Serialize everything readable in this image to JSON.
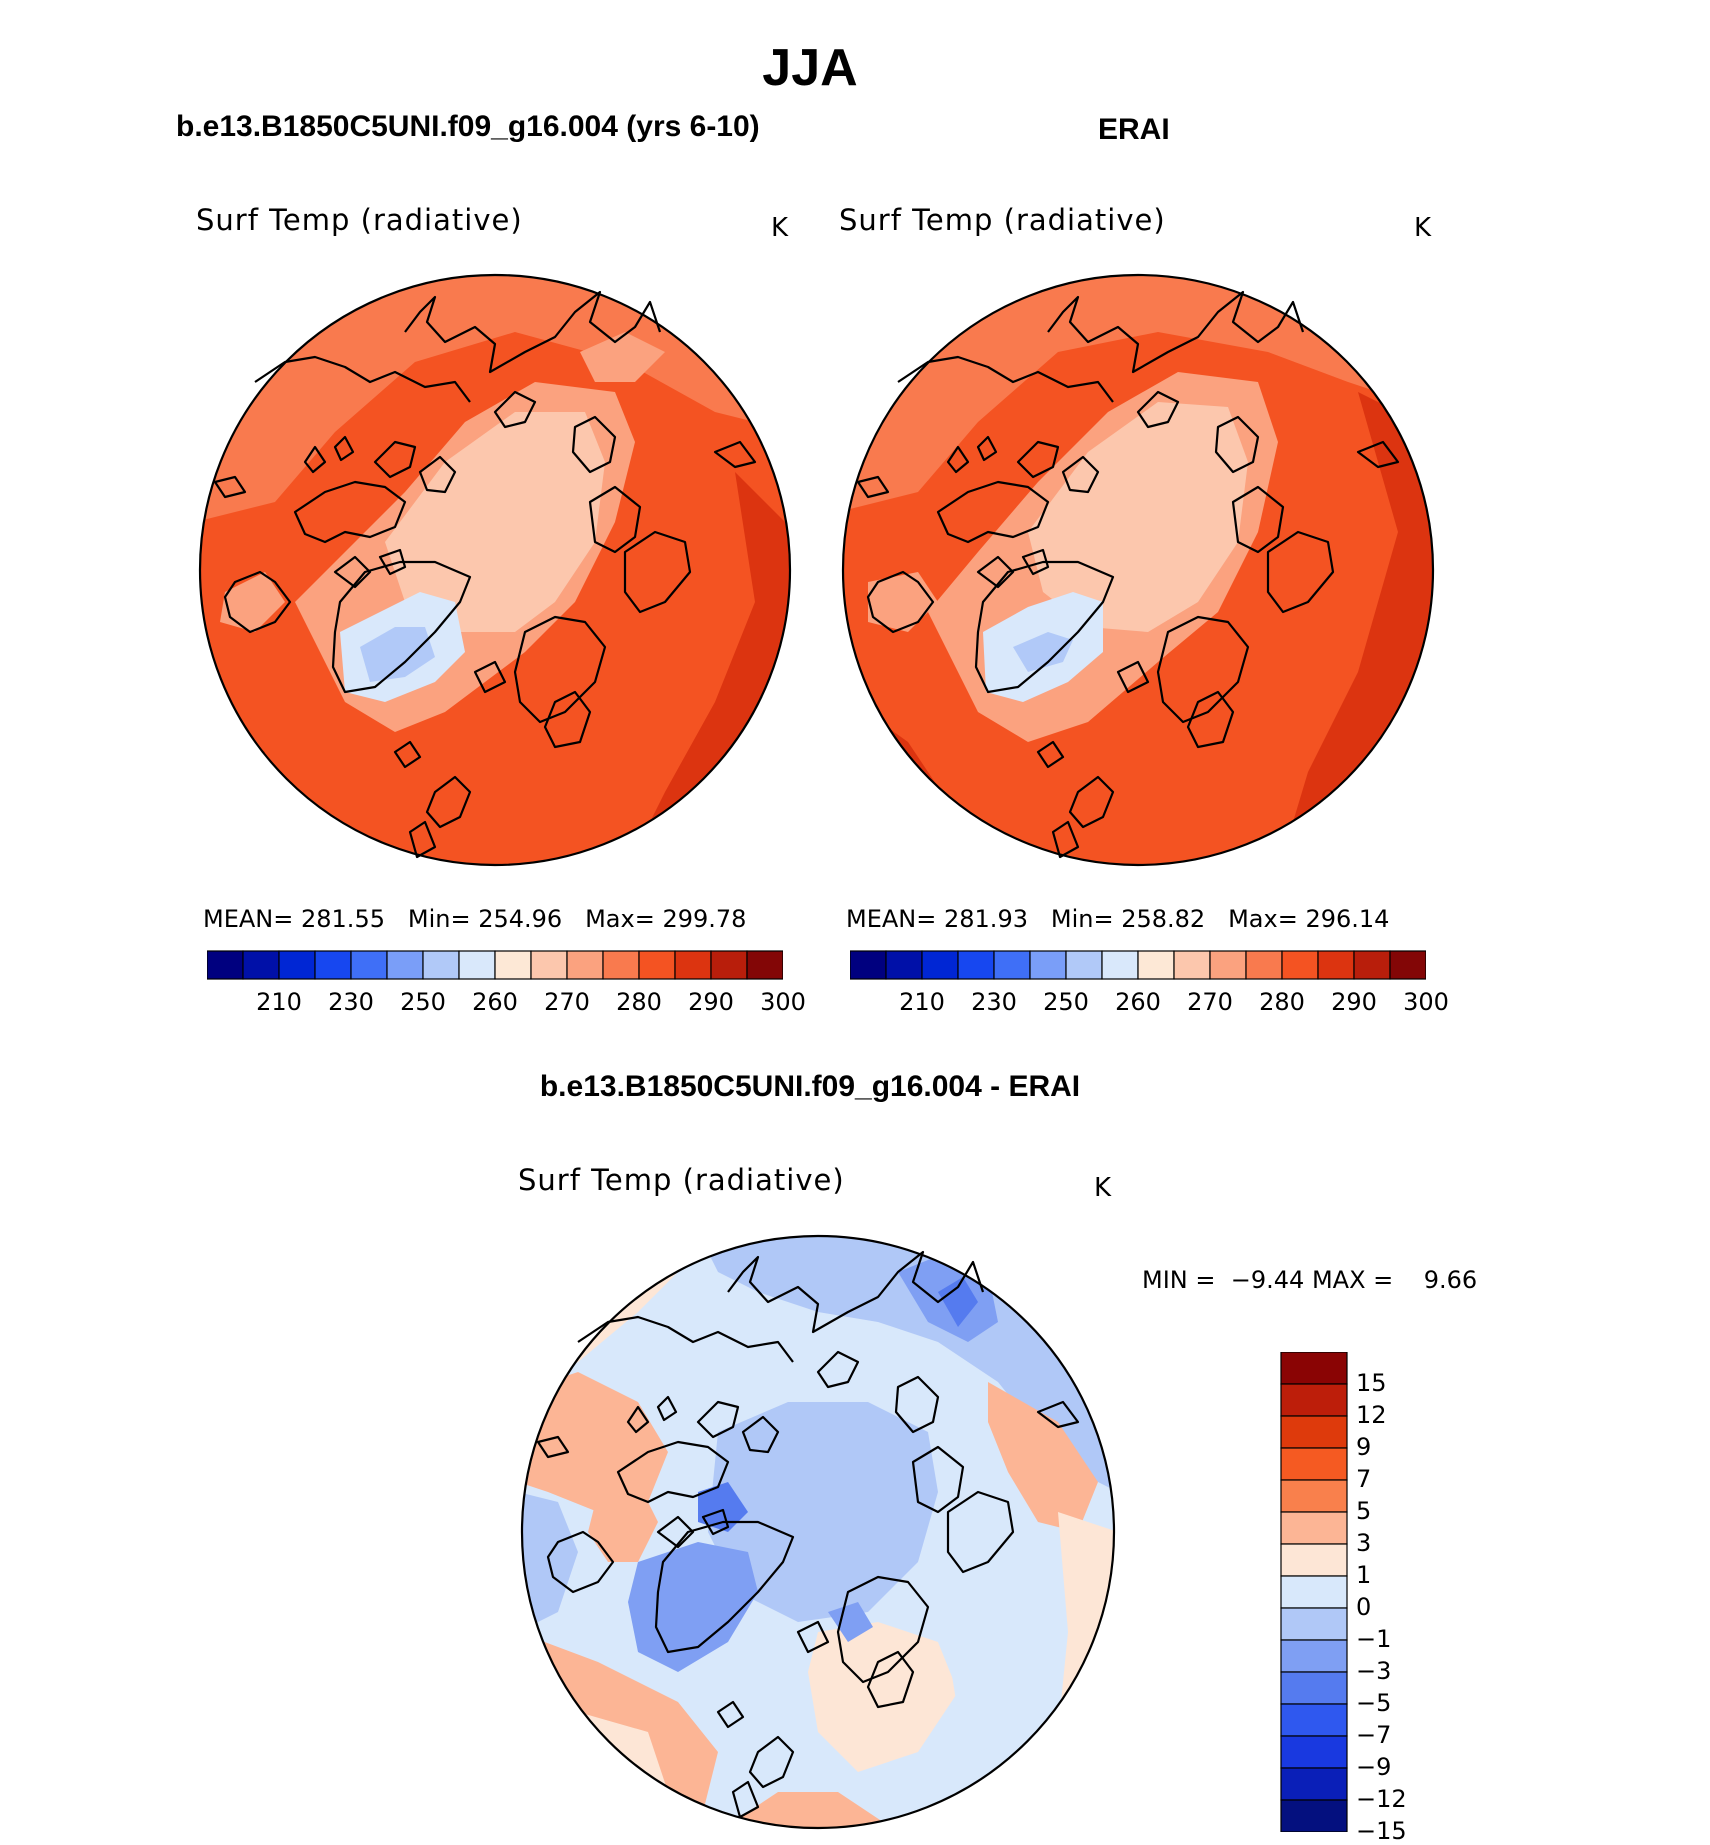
{
  "main_title": "JJA",
  "panels": [
    {
      "subtitle": "b.e13.B1850C5UNI.f09_g16.004 (yrs 6-10)",
      "variable": "Surf Temp (radiative)",
      "units": "K",
      "stats": {
        "mean_label": "MEAN=",
        "mean": "281.55",
        "min_label": "Min=",
        "min": "254.96",
        "max_label": "Max=",
        "max": "299.78"
      }
    },
    {
      "subtitle": "ERAI",
      "variable": "Surf Temp (radiative)",
      "units": "K",
      "stats": {
        "mean_label": "MEAN=",
        "mean": "281.93",
        "min_label": "Min=",
        "min": "258.82",
        "max_label": "Max=",
        "max": "296.14"
      }
    }
  ],
  "abs_colorbar": {
    "colors": [
      "#00007f",
      "#0010a8",
      "#0026d4",
      "#1747f0",
      "#3f6ff7",
      "#7a9ef8",
      "#b1c9f8",
      "#d9e8fb",
      "#fde8d6",
      "#fcc7ad",
      "#fba27f",
      "#f97a4e",
      "#f45322",
      "#dc3410",
      "#b81e0b",
      "#830606"
    ],
    "ticks": [
      "210",
      "230",
      "250",
      "260",
      "270",
      "280",
      "290",
      "300"
    ]
  },
  "difference": {
    "title": "b.e13.B1850C5UNI.f09_g16.004 - ERAI",
    "variable": "Surf Temp (radiative)",
    "units": "K",
    "stats": {
      "min_label": "MIN =",
      "min": "−9.44",
      "max_label": "MAX =",
      "max": "9.66"
    },
    "colorbar": {
      "colors": [
        "#8a0404",
        "#bd1e0a",
        "#de3a0c",
        "#f55a22",
        "#f9804c",
        "#fcb595",
        "#fde6d6",
        "#d8e8fb",
        "#b0c8f7",
        "#7f9ff3",
        "#557bef",
        "#2f58ef",
        "#1939e0",
        "#0a1fb8",
        "#04107f"
      ],
      "ticks": [
        "15",
        "12",
        "9",
        "7",
        "5",
        "3",
        "1",
        "0",
        "−1",
        "−3",
        "−5",
        "−7",
        "−9",
        "−12",
        "−15"
      ]
    }
  }
}
